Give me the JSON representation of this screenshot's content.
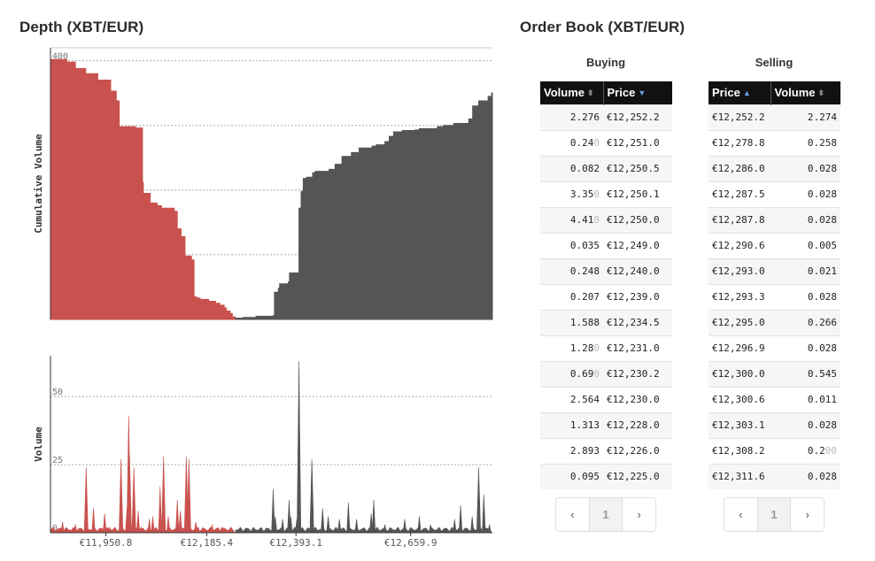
{
  "depth_title": "Depth (XBT/EUR)",
  "book_title": "Order Book (XBT/EUR)",
  "colors": {
    "bid": "#c9524e",
    "ask": "#555555",
    "header_bg": "#111111",
    "sort_active": "#6aa0e6"
  },
  "chart_data": [
    {
      "type": "area",
      "ylabel": "Cumulative Volume",
      "ylim": [
        0,
        420
      ],
      "yticks": [
        "0",
        "100",
        "200",
        "300",
        "400"
      ],
      "grid": true,
      "series": [
        {
          "side": "bid",
          "x": [
            11822,
            11860,
            11880,
            11904,
            11932,
            11962,
            11975,
            11982,
            12020,
            12036,
            12038,
            12054,
            12070,
            12080,
            12110,
            12117,
            12126,
            12135,
            12150,
            12156,
            12162,
            12170,
            12190,
            12206,
            12216,
            12226,
            12231,
            12240,
            12245,
            12252
          ],
          "y": [
            402,
            398,
            388,
            380,
            370,
            353,
            338,
            298,
            296,
            212,
            195,
            180,
            176,
            172,
            167,
            140,
            128,
            98,
            92,
            35,
            33,
            31,
            28,
            25,
            22,
            18,
            13,
            9,
            4,
            0
          ]
        },
        {
          "side": "ask",
          "x": [
            12252,
            12270,
            12300,
            12340,
            12343,
            12352,
            12355,
            12375,
            12378,
            12400,
            12405,
            12410,
            12418,
            12432,
            12438,
            12470,
            12484,
            12500,
            12522,
            12540,
            12570,
            12580,
            12600,
            12610,
            12620,
            12640,
            12670,
            12680,
            12722,
            12736,
            12760,
            12795,
            12804,
            12818,
            12840,
            12848
          ],
          "y": [
            2,
            3,
            5,
            6,
            42,
            48,
            55,
            58,
            72,
            172,
            198,
            218,
            220,
            227,
            229,
            232,
            240,
            252,
            258,
            265,
            268,
            270,
            275,
            283,
            290,
            292,
            293,
            295,
            298,
            300,
            303,
            310,
            330,
            338,
            345,
            350
          ]
        }
      ]
    },
    {
      "type": "bar",
      "ylabel": "Volume",
      "ylim": [
        0,
        65
      ],
      "yticks": [
        "0",
        "25",
        "50"
      ],
      "xticks": [
        "€11,950.8",
        "€12,185.4",
        "€12,393.1",
        "€12,659.9"
      ],
      "grid": true,
      "series": [
        {
          "side": "bid",
          "x": [
            11850,
            11880,
            11905,
            11922,
            11948,
            11960,
            11986,
            12000,
            12004,
            12006,
            12010,
            12016,
            12026,
            12033,
            12052,
            12060,
            12077,
            12085,
            12096,
            12117,
            12124,
            12138,
            12144,
            12160,
            12166,
            12198,
            12220
          ],
          "y": [
            4,
            3,
            24,
            9,
            7,
            2,
            27,
            9,
            43,
            28,
            3,
            24,
            8,
            2,
            5,
            6,
            17,
            28,
            6,
            12,
            8,
            28,
            27,
            4,
            2,
            3,
            2
          ]
        },
        {
          "side": "ask",
          "x": [
            12340,
            12345,
            12362,
            12377,
            12381,
            12395,
            12400,
            12430,
            12455,
            12468,
            12494,
            12515,
            12534,
            12568,
            12574,
            12600,
            12646,
            12680,
            12706,
            12762,
            12776,
            12803,
            12818,
            12830,
            12843
          ],
          "y": [
            16,
            6,
            5,
            12,
            6,
            5,
            63,
            27,
            9,
            6,
            5,
            11,
            5,
            7,
            12,
            3,
            5,
            6,
            3,
            5,
            10,
            6,
            24,
            14,
            3
          ]
        }
      ]
    }
  ],
  "buying": {
    "label": "Buying",
    "headers": {
      "volume": "Volume",
      "price": "Price"
    },
    "rows": [
      {
        "volume": "2.276",
        "vol_dim": "",
        "price": "€12,252.2"
      },
      {
        "volume": "0.24",
        "vol_dim": "0",
        "price": "€12,251.0"
      },
      {
        "volume": "0.082",
        "vol_dim": "",
        "price": "€12,250.5"
      },
      {
        "volume": "3.35",
        "vol_dim": "0",
        "price": "€12,250.1"
      },
      {
        "volume": "4.41",
        "vol_dim": "0",
        "price": "€12,250.0"
      },
      {
        "volume": "0.035",
        "vol_dim": "",
        "price": "€12,249.0"
      },
      {
        "volume": "0.248",
        "vol_dim": "",
        "price": "€12,240.0"
      },
      {
        "volume": "0.207",
        "vol_dim": "",
        "price": "€12,239.0"
      },
      {
        "volume": "1.588",
        "vol_dim": "",
        "price": "€12,234.5"
      },
      {
        "volume": "1.28",
        "vol_dim": "0",
        "price": "€12,231.0"
      },
      {
        "volume": "0.69",
        "vol_dim": "0",
        "price": "€12,230.2"
      },
      {
        "volume": "2.564",
        "vol_dim": "",
        "price": "€12,230.0"
      },
      {
        "volume": "1.313",
        "vol_dim": "",
        "price": "€12,228.0"
      },
      {
        "volume": "2.893",
        "vol_dim": "",
        "price": "€12,226.0"
      },
      {
        "volume": "0.095",
        "vol_dim": "",
        "price": "€12,225.0"
      }
    ],
    "pager": {
      "prev": "‹",
      "page": "1",
      "next": "›"
    }
  },
  "selling": {
    "label": "Selling",
    "headers": {
      "price": "Price",
      "volume": "Volume"
    },
    "rows": [
      {
        "price": "€12,252.2",
        "volume": "2.274",
        "vol_dim": ""
      },
      {
        "price": "€12,278.8",
        "volume": "0.258",
        "vol_dim": ""
      },
      {
        "price": "€12,286.0",
        "volume": "0.028",
        "vol_dim": ""
      },
      {
        "price": "€12,287.5",
        "volume": "0.028",
        "vol_dim": ""
      },
      {
        "price": "€12,287.8",
        "volume": "0.028",
        "vol_dim": ""
      },
      {
        "price": "€12,290.6",
        "volume": "0.005",
        "vol_dim": ""
      },
      {
        "price": "€12,293.0",
        "volume": "0.021",
        "vol_dim": ""
      },
      {
        "price": "€12,293.3",
        "volume": "0.028",
        "vol_dim": ""
      },
      {
        "price": "€12,295.0",
        "volume": "0.266",
        "vol_dim": ""
      },
      {
        "price": "€12,296.9",
        "volume": "0.028",
        "vol_dim": ""
      },
      {
        "price": "€12,300.0",
        "volume": "0.545",
        "vol_dim": ""
      },
      {
        "price": "€12,300.6",
        "volume": "0.011",
        "vol_dim": ""
      },
      {
        "price": "€12,303.1",
        "volume": "0.028",
        "vol_dim": ""
      },
      {
        "price": "€12,308.2",
        "volume": "0.2",
        "vol_dim": "00"
      },
      {
        "price": "€12,311.6",
        "volume": "0.028",
        "vol_dim": ""
      }
    ],
    "pager": {
      "prev": "‹",
      "page": "1",
      "next": "›"
    }
  }
}
